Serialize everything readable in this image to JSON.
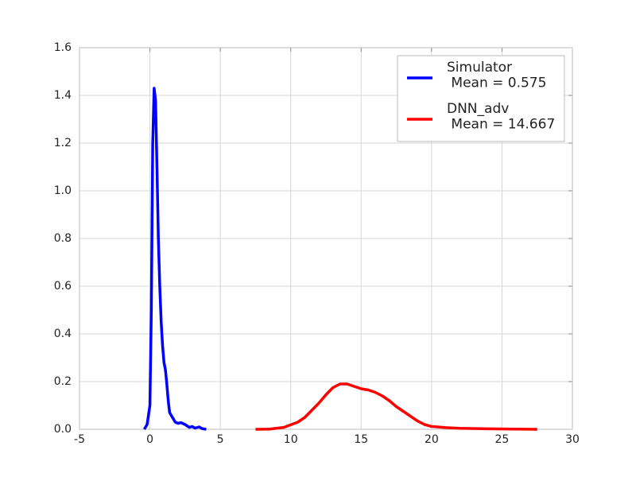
{
  "chart_data": {
    "type": "line",
    "series": [
      {
        "name": "Simulator\n Mean = 0.575",
        "color": "#0000ff",
        "x": [
          -0.4,
          -0.2,
          0,
          0.1,
          0.2,
          0.3,
          0.4,
          0.5,
          0.6,
          0.7,
          0.8,
          0.9,
          1.0,
          1.1,
          1.2,
          1.3,
          1.4,
          1.6,
          1.8,
          2.0,
          2.2,
          2.5,
          2.8,
          3.0,
          3.2,
          3.5,
          3.7,
          4.0
        ],
        "values": [
          0,
          0.02,
          0.1,
          0.5,
          1.2,
          1.43,
          1.38,
          1.1,
          0.8,
          0.6,
          0.45,
          0.35,
          0.28,
          0.25,
          0.19,
          0.12,
          0.07,
          0.05,
          0.03,
          0.025,
          0.028,
          0.02,
          0.008,
          0.012,
          0.005,
          0.01,
          0.003,
          0
        ]
      },
      {
        "name": "DNN_adv\n Mean = 14.667",
        "color": "#ff0000",
        "x": [
          7.5,
          8.5,
          9.5,
          10.5,
          11,
          11.5,
          12,
          12.5,
          13,
          13.5,
          14,
          14.5,
          15,
          15.5,
          16,
          16.5,
          17,
          17.5,
          18,
          18.5,
          19,
          19.5,
          20,
          21,
          22,
          24,
          27.5
        ],
        "values": [
          0,
          0.001,
          0.008,
          0.03,
          0.05,
          0.08,
          0.11,
          0.145,
          0.175,
          0.19,
          0.19,
          0.18,
          0.17,
          0.165,
          0.155,
          0.14,
          0.12,
          0.095,
          0.075,
          0.055,
          0.035,
          0.02,
          0.012,
          0.007,
          0.004,
          0.002,
          0
        ]
      }
    ],
    "xlim": [
      -5,
      30
    ],
    "xticks": [
      -5,
      0,
      5,
      10,
      15,
      20,
      25,
      30
    ],
    "ylim": [
      0,
      1.6
    ],
    "yticks": [
      {
        "value": 0,
        "label": "0.0"
      },
      0.2,
      0.4,
      0.6,
      0.8,
      {
        "value": 1,
        "label": "1.0"
      },
      1.2,
      1.4,
      1.6
    ],
    "grid": true,
    "legend": "upper right"
  }
}
